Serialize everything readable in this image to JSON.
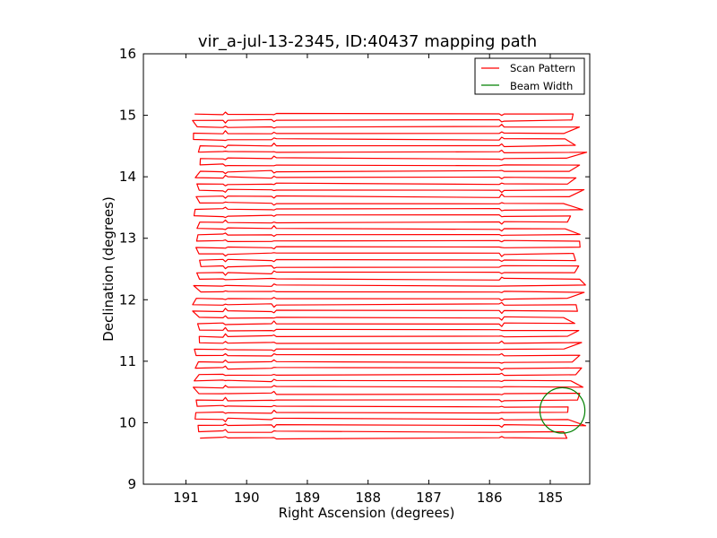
{
  "chart_data": {
    "type": "line",
    "title": "vir_a-jul-13-2345, ID:40437 mapping path",
    "xlabel": "Right Ascension (degrees)",
    "ylabel": "Declination (degrees)",
    "xlim": [
      191.7,
      184.35
    ],
    "ylim": [
      9,
      16
    ],
    "xticks": [
      {
        "value": 191,
        "label": "191"
      },
      {
        "value": 190,
        "label": "190"
      },
      {
        "value": 189,
        "label": "189"
      },
      {
        "value": 188,
        "label": "188"
      },
      {
        "value": 187,
        "label": "187"
      },
      {
        "value": 186,
        "label": "186"
      },
      {
        "value": 185,
        "label": "185"
      }
    ],
    "yticks": [
      {
        "value": 9,
        "label": "9"
      },
      {
        "value": 10,
        "label": "10"
      },
      {
        "value": 11,
        "label": "11"
      },
      {
        "value": 12,
        "label": "12"
      },
      {
        "value": 13,
        "label": "13"
      },
      {
        "value": 14,
        "label": "14"
      },
      {
        "value": 15,
        "label": "15"
      },
      {
        "value": 16,
        "label": "16"
      }
    ],
    "grid": false,
    "legend_position": "top-right",
    "series": [
      {
        "name": "Scan Pattern",
        "color": "#ff0000",
        "pattern": {
          "dec_start": 9.75,
          "dec_end": 15.02,
          "row_count": 52,
          "ra_left_range": [
            190.9,
            190.75
          ],
          "ra_right_range": [
            184.4,
            184.8
          ],
          "kink_ra": [
            190.35,
            189.55,
            185.8
          ]
        }
      },
      {
        "name": "Beam Width",
        "color": "#008000",
        "circle": {
          "ra": 184.8,
          "dec": 10.2,
          "radius_deg": 0.37
        }
      }
    ]
  }
}
